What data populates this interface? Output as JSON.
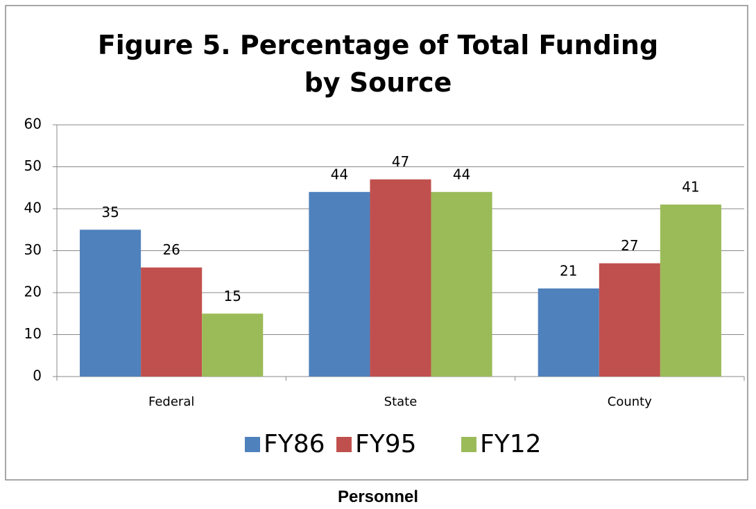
{
  "chart_data": {
    "type": "bar",
    "title": "Figure 5. Percentage of Total Funding by Source",
    "categories": [
      "Federal",
      "State",
      "County"
    ],
    "series": [
      {
        "name": "FY86",
        "color": "#4f81bd",
        "values": [
          35,
          44,
          21
        ]
      },
      {
        "name": "FY95",
        "color": "#c0504d",
        "values": [
          26,
          47,
          27
        ]
      },
      {
        "name": "FY12",
        "color": "#9bbb59",
        "values": [
          15,
          44,
          41
        ]
      }
    ],
    "ylim": [
      0,
      60
    ],
    "yticks": [
      0,
      10,
      20,
      30,
      40,
      50,
      60
    ],
    "grid": true,
    "legend": "bottom"
  },
  "caption": "Personnel"
}
